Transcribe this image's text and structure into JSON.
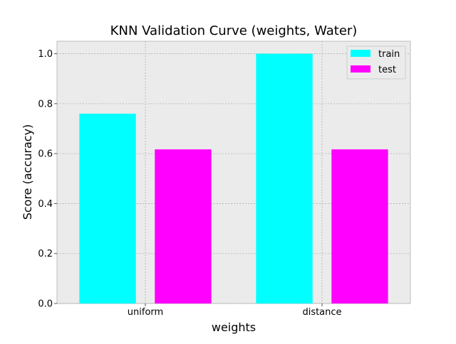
{
  "chart_data": {
    "type": "bar",
    "title": "KNN Validation Curve (weights, Water)",
    "xlabel": "weights",
    "ylabel": "Score (accuracy)",
    "categories": [
      "uniform",
      "distance"
    ],
    "series": [
      {
        "name": "train",
        "color": "#00ffff",
        "values": [
          0.76,
          1.0
        ]
      },
      {
        "name": "test",
        "color": "#ff00ff",
        "values": [
          0.617,
          0.617
        ]
      }
    ],
    "ylim": [
      0,
      1.05
    ],
    "yticks": [
      0.0,
      0.2,
      0.4,
      0.6,
      0.8,
      1.0
    ],
    "ytick_labels": [
      "0.0",
      "0.2",
      "0.4",
      "0.6",
      "0.8",
      "1.0"
    ],
    "grid": true,
    "legend_position": "top-right",
    "colors": {
      "plot_background": "#ebebeb",
      "grid": "#b0b0b0",
      "axes_edge": "#bcbcbc"
    }
  }
}
